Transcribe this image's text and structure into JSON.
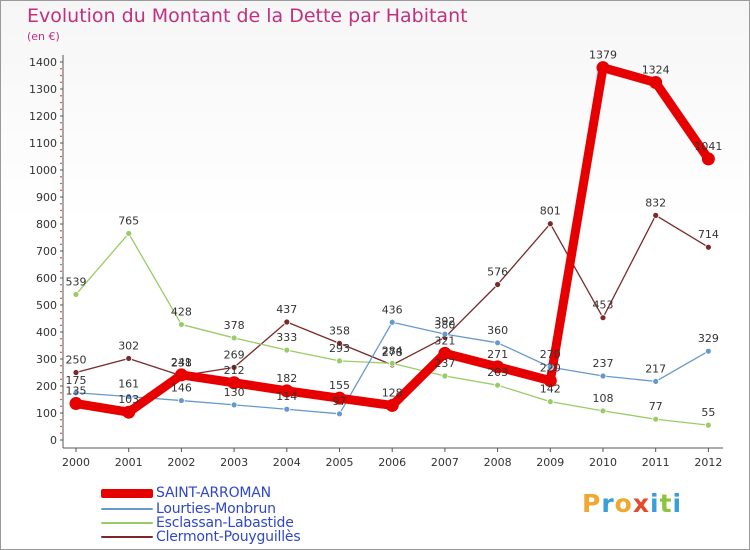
{
  "header": {
    "title": "Evolution du Montant de la Dette par Habitant",
    "subtitle": "(en €)"
  },
  "logo": {
    "text": "Proxiti",
    "letters": [
      "P",
      "r",
      "o",
      "x",
      "i",
      "t",
      "i"
    ],
    "letter_colors": [
      "#f0a830",
      "#3a9fd8",
      "#f0a830",
      "#e34b2a",
      "#3a9fd8",
      "#8cc63f",
      "#3a9fd8"
    ]
  },
  "chart_data": {
    "type": "line",
    "title": "Evolution du Montant de la Dette par Habitant",
    "subtitle": "(en €)",
    "xlabel": "",
    "ylabel": "",
    "ylim": [
      0,
      1400
    ],
    "y_ticks": [
      0,
      100,
      200,
      300,
      400,
      500,
      600,
      700,
      800,
      900,
      1000,
      1100,
      1200,
      1300,
      1400
    ],
    "grid": false,
    "legend_position": "bottom-left",
    "categories": [
      "2000",
      "2001",
      "2002",
      "2003",
      "2004",
      "2005",
      "2006",
      "2007",
      "2008",
      "2009",
      "2010",
      "2011",
      "2012"
    ],
    "series": [
      {
        "name": "SAINT-ARROMAN",
        "color": "#e60000",
        "values": [
          135,
          103,
          241,
          212,
          182,
          155,
          128,
          321,
          271,
          220,
          1379,
          1324,
          1041
        ]
      },
      {
        "name": "Lourties-Monbrun",
        "color": "#6699cc",
        "values": [
          175,
          161,
          146,
          130,
          114,
          97,
          436,
          392,
          360,
          270,
          237,
          217,
          329
        ]
      },
      {
        "name": "Esclassan-Labastide",
        "color": "#99cc66",
        "values": [
          539,
          765,
          428,
          378,
          333,
          293,
          284,
          237,
          203,
          142,
          108,
          77,
          55
        ]
      },
      {
        "name": "Clermont-Pouyguillès",
        "color": "#7a2a2a",
        "values": [
          250,
          302,
          238,
          269,
          437,
          358,
          278,
          380,
          576,
          801,
          453,
          832,
          714
        ]
      }
    ]
  }
}
